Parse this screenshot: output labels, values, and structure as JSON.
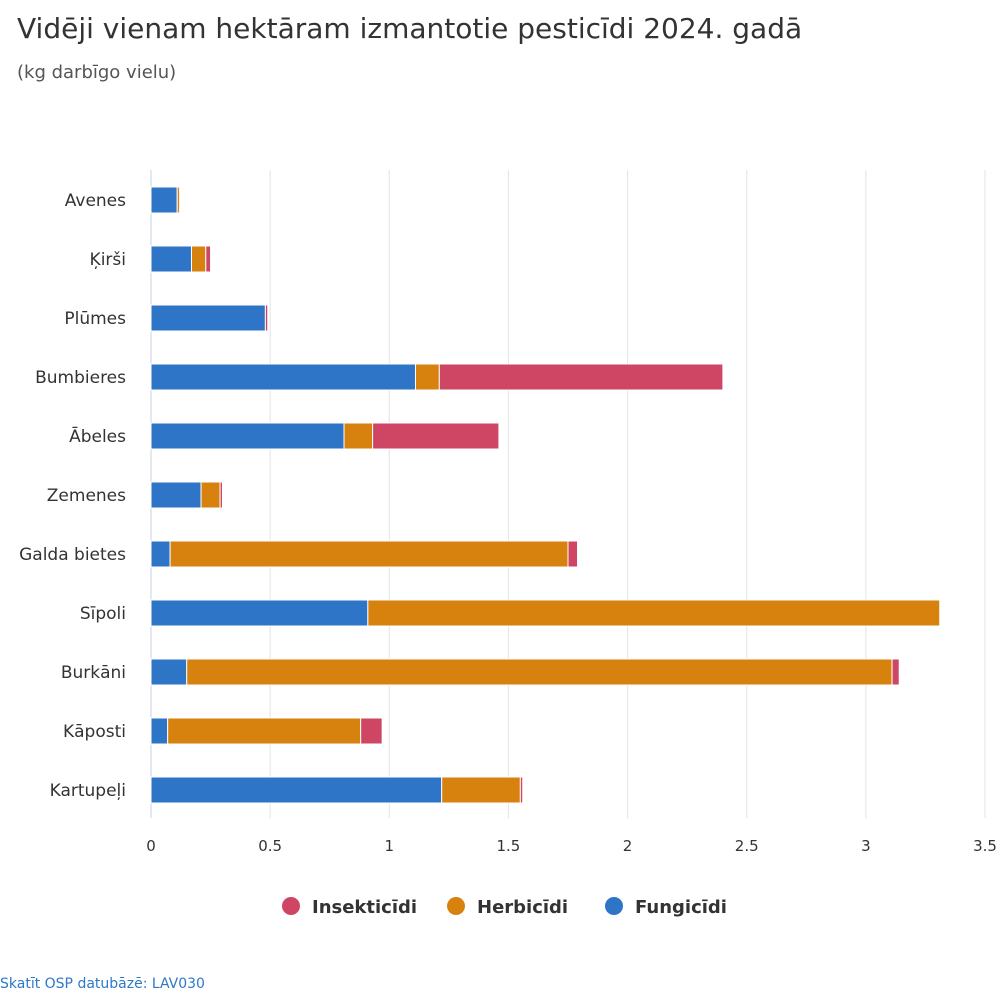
{
  "chart_data": {
    "type": "bar",
    "orientation": "horizontal",
    "stacked": true,
    "title": "Vidēji vienam hektāram izmantotie pesticīdi 2024. gadā",
    "subtitle": "(kg darbīgo vielu)",
    "categories": [
      "Avenes",
      "Ķirši",
      "Plūmes",
      "Bumbieres",
      "Ābeles",
      "Zemenes",
      "Galda bietes",
      "Sīpoli",
      "Burkāni",
      "Kāposti",
      "Kartupeļi"
    ],
    "series": [
      {
        "name": "Fungicīdi",
        "color": "#2f75c7",
        "values": [
          0.11,
          0.17,
          0.48,
          1.11,
          0.81,
          0.21,
          0.08,
          0.91,
          0.15,
          0.07,
          1.22
        ]
      },
      {
        "name": "Herbicīdi",
        "color": "#d7820e",
        "values": [
          0.01,
          0.06,
          0.0,
          0.1,
          0.12,
          0.08,
          1.67,
          2.4,
          2.96,
          0.81,
          0.33
        ]
      },
      {
        "name": "Insekticīdi",
        "color": "#cf4564",
        "values": [
          0.0,
          0.02,
          0.01,
          1.19,
          0.53,
          0.01,
          0.04,
          0.0,
          0.03,
          0.09,
          0.01
        ]
      }
    ],
    "legend_order": [
      "Insekticīdi",
      "Herbicīdi",
      "Fungicīdi"
    ],
    "xlim": [
      0,
      3.5
    ],
    "xticks": [
      "0",
      "0.5",
      "1",
      "1.5",
      "2",
      "2.5",
      "3",
      "3.5"
    ],
    "grid": true,
    "legend_position": "bottom-center"
  },
  "footer": {
    "source_link": "Skatīt OSP datubāzē: LAV030"
  }
}
